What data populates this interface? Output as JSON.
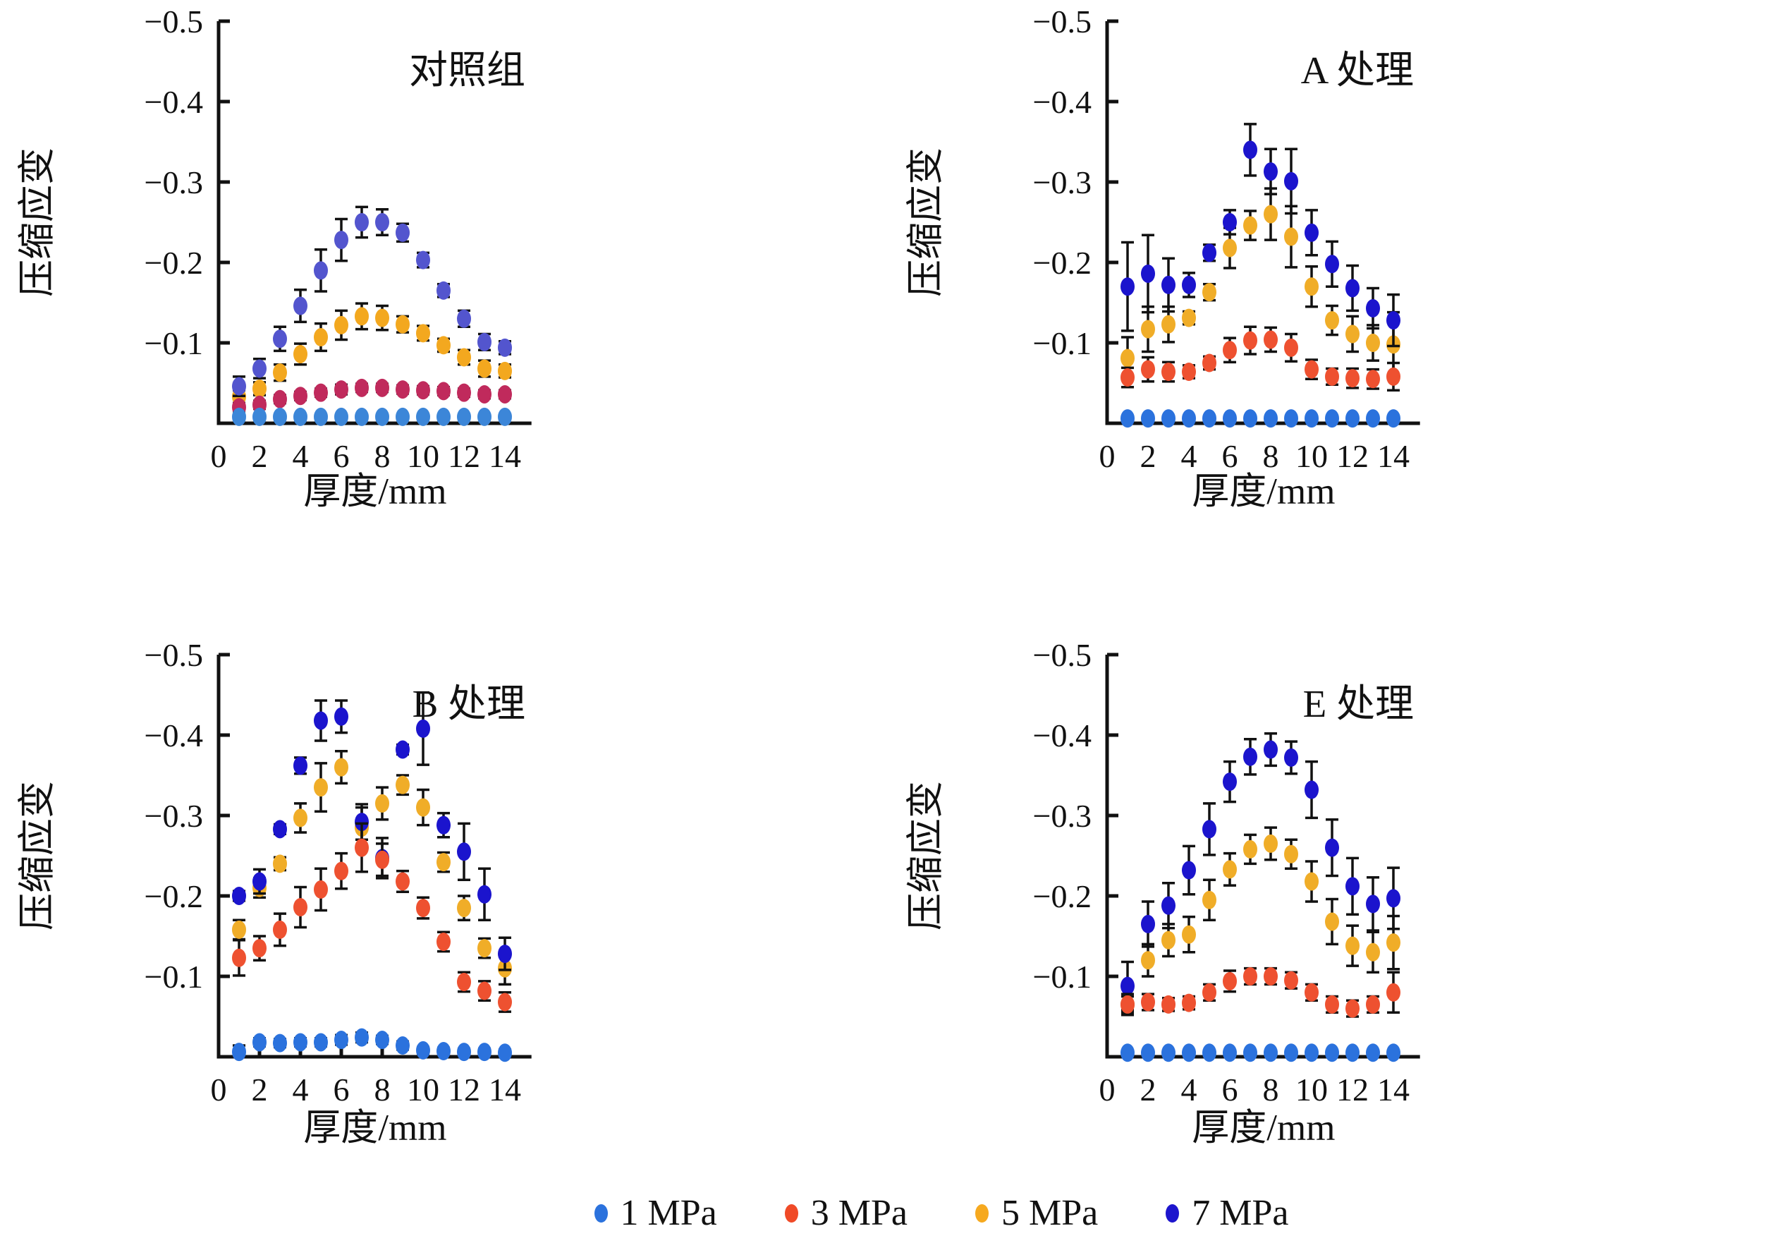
{
  "axes": {
    "xlabel": "厚度/mm",
    "ylabel": "压缩应变",
    "x_ticks": [
      0,
      2,
      4,
      6,
      8,
      10,
      12,
      14
    ],
    "y_ticks": [
      -0.1,
      -0.2,
      -0.3,
      -0.4,
      -0.5
    ],
    "y_tick_labels": [
      "−0.1",
      "−0.2",
      "−0.3",
      "−0.4",
      "−0.5"
    ],
    "x_tick_labels": [
      "0",
      "2",
      "4",
      "6",
      "8",
      "10",
      "12",
      "14"
    ],
    "xlim": [
      0,
      15.3
    ],
    "ylim": [
      0,
      -0.5
    ],
    "grid": false,
    "axis_color": "#111111",
    "error_bar_color": "#111111"
  },
  "legend": {
    "position": "bottom-center",
    "items": [
      {
        "label": "1 MPa",
        "color": "#2b72dd"
      },
      {
        "label": "3 MPa",
        "color": "#f04a27"
      },
      {
        "label": "5 MPa",
        "color": "#f6a91f"
      },
      {
        "label": "7 MPa",
        "color": "#1d15cd"
      }
    ]
  },
  "draw_order": [
    "5 MPa",
    "7 MPa",
    "3 MPa",
    "1 MPa"
  ],
  "chart_data": [
    {
      "type": "scatter",
      "title": "对照组",
      "xlabel": "厚度/mm",
      "ylabel": "压缩应变",
      "x": [
        1,
        2,
        3,
        4,
        5,
        6,
        7,
        8,
        9,
        10,
        11,
        12,
        13,
        14
      ],
      "series": [
        {
          "name": "1 MPa",
          "color": "#3c86d8",
          "values": [
            -0.008,
            -0.008,
            -0.008,
            -0.008,
            -0.008,
            -0.008,
            -0.008,
            -0.008,
            -0.008,
            -0.008,
            -0.008,
            -0.008,
            -0.008,
            -0.008
          ],
          "errors": [
            0.003,
            0.003,
            0.003,
            0.003,
            0.003,
            0.003,
            0.003,
            0.003,
            0.003,
            0.003,
            0.003,
            0.003,
            0.003,
            0.003
          ]
        },
        {
          "name": "3 MPa",
          "color": "#c02a5c",
          "values": [
            -0.02,
            -0.023,
            -0.03,
            -0.034,
            -0.038,
            -0.042,
            -0.044,
            -0.044,
            -0.042,
            -0.041,
            -0.04,
            -0.038,
            -0.036,
            -0.036
          ],
          "errors": [
            0.005,
            0.005,
            0.005,
            0.005,
            0.005,
            0.006,
            0.005,
            0.005,
            0.005,
            0.005,
            0.005,
            0.005,
            0.005,
            0.005
          ]
        },
        {
          "name": "5 MPa",
          "color": "#f3a81f",
          "values": [
            -0.033,
            -0.043,
            -0.063,
            -0.086,
            -0.107,
            -0.122,
            -0.133,
            -0.131,
            -0.123,
            -0.112,
            -0.097,
            -0.082,
            -0.068,
            -0.065
          ],
          "errors": [
            0.008,
            0.008,
            0.01,
            0.013,
            0.017,
            0.018,
            0.016,
            0.015,
            0.01,
            0.009,
            0.008,
            0.009,
            0.01,
            0.008
          ]
        },
        {
          "name": "7 MPa",
          "color": "#5355ce",
          "values": [
            -0.046,
            -0.068,
            -0.105,
            -0.146,
            -0.19,
            -0.228,
            -0.25,
            -0.25,
            -0.237,
            -0.203,
            -0.165,
            -0.13,
            -0.101,
            -0.094
          ],
          "errors": [
            0.012,
            0.012,
            0.015,
            0.02,
            0.026,
            0.026,
            0.019,
            0.016,
            0.011,
            0.009,
            0.008,
            0.01,
            0.01,
            0.008
          ]
        }
      ]
    },
    {
      "type": "scatter",
      "title": "A 处理",
      "xlabel": "厚度/mm",
      "ylabel": "压缩应变",
      "x": [
        1,
        2,
        3,
        4,
        5,
        6,
        7,
        8,
        9,
        10,
        11,
        12,
        13,
        14
      ],
      "series": [
        {
          "name": "1 MPa",
          "color": "#2b72dd",
          "values": [
            -0.006,
            -0.006,
            -0.006,
            -0.006,
            -0.006,
            -0.006,
            -0.006,
            -0.006,
            -0.006,
            -0.006,
            -0.006,
            -0.006,
            -0.006,
            -0.006
          ],
          "errors": [
            0.003,
            0.003,
            0.003,
            0.003,
            0.003,
            0.003,
            0.003,
            0.003,
            0.003,
            0.003,
            0.003,
            0.003,
            0.003,
            0.003
          ]
        },
        {
          "name": "3 MPa",
          "color": "#ee5130",
          "values": [
            -0.057,
            -0.067,
            -0.064,
            -0.064,
            -0.075,
            -0.091,
            -0.103,
            -0.104,
            -0.094,
            -0.067,
            -0.058,
            -0.056,
            -0.055,
            -0.058
          ],
          "errors": [
            0.012,
            0.015,
            0.012,
            0.008,
            0.008,
            0.015,
            0.017,
            0.015,
            0.017,
            0.012,
            0.01,
            0.012,
            0.012,
            0.017
          ]
        },
        {
          "name": "5 MPa",
          "color": "#f0ad28",
          "values": [
            -0.081,
            -0.117,
            -0.123,
            -0.131,
            -0.163,
            -0.218,
            -0.246,
            -0.26,
            -0.232,
            -0.17,
            -0.128,
            -0.111,
            -0.1,
            -0.098
          ],
          "errors": [
            0.026,
            0.028,
            0.022,
            0.008,
            0.01,
            0.025,
            0.018,
            0.032,
            0.038,
            0.025,
            0.018,
            0.022,
            0.022,
            0.04
          ]
        },
        {
          "name": "7 MPa",
          "color": "#1b14cd",
          "values": [
            -0.17,
            -0.186,
            -0.172,
            -0.172,
            -0.212,
            -0.25,
            -0.34,
            -0.313,
            -0.301,
            -0.237,
            -0.198,
            -0.168,
            -0.143,
            -0.128
          ],
          "errors": [
            0.055,
            0.048,
            0.033,
            0.015,
            0.01,
            0.015,
            0.032,
            0.028,
            0.04,
            0.028,
            0.028,
            0.028,
            0.025,
            0.032
          ]
        }
      ]
    },
    {
      "type": "scatter",
      "title": "B 处理",
      "xlabel": "厚度/mm",
      "ylabel": "压缩应变",
      "x": [
        1,
        2,
        3,
        4,
        5,
        6,
        7,
        8,
        9,
        10,
        11,
        12,
        13,
        14
      ],
      "series": [
        {
          "name": "1 MPa",
          "color": "#2b72dd",
          "values": [
            -0.006,
            -0.018,
            -0.017,
            -0.018,
            -0.018,
            -0.021,
            -0.024,
            -0.021,
            -0.014,
            -0.008,
            -0.007,
            -0.006,
            -0.006,
            -0.005
          ],
          "errors": [
            0.008,
            0.005,
            0.005,
            0.005,
            0.005,
            0.006,
            0.006,
            0.005,
            0.005,
            0.004,
            0.004,
            0.004,
            0.004,
            0.004
          ]
        },
        {
          "name": "3 MPa",
          "color": "#ee5130",
          "values": [
            -0.123,
            -0.135,
            -0.158,
            -0.186,
            -0.208,
            -0.231,
            -0.26,
            -0.245,
            -0.218,
            -0.185,
            -0.143,
            -0.093,
            -0.082,
            -0.068
          ],
          "errors": [
            0.022,
            0.015,
            0.02,
            0.025,
            0.026,
            0.022,
            0.03,
            0.02,
            0.013,
            0.013,
            0.012,
            0.012,
            0.012,
            0.012
          ]
        },
        {
          "name": "5 MPa",
          "color": "#f0ad28",
          "values": [
            -0.158,
            -0.21,
            -0.24,
            -0.297,
            -0.335,
            -0.36,
            -0.285,
            -0.315,
            -0.338,
            -0.31,
            -0.242,
            -0.185,
            -0.135,
            -0.11
          ],
          "errors": [
            0.012,
            0.012,
            0.008,
            0.018,
            0.03,
            0.02,
            0.025,
            0.02,
            0.012,
            0.022,
            0.012,
            0.015,
            0.012,
            0.02
          ]
        },
        {
          "name": "7 MPa",
          "color": "#1b14cd",
          "values": [
            -0.2,
            -0.218,
            -0.283,
            -0.362,
            -0.418,
            -0.423,
            -0.292,
            -0.247,
            -0.382,
            -0.408,
            -0.288,
            -0.255,
            -0.202,
            -0.128
          ],
          "errors": [
            0.006,
            0.015,
            0.006,
            0.01,
            0.025,
            0.02,
            0.022,
            0.025,
            0.006,
            0.045,
            0.015,
            0.035,
            0.032,
            0.02
          ]
        }
      ]
    },
    {
      "type": "scatter",
      "title": "E 处理",
      "xlabel": "厚度/mm",
      "ylabel": "压缩应变",
      "x": [
        1,
        2,
        3,
        4,
        5,
        6,
        7,
        8,
        9,
        10,
        11,
        12,
        13,
        14
      ],
      "series": [
        {
          "name": "1 MPa",
          "color": "#2b72dd",
          "values": [
            -0.005,
            -0.005,
            -0.005,
            -0.005,
            -0.005,
            -0.005,
            -0.005,
            -0.005,
            -0.005,
            -0.005,
            -0.005,
            -0.005,
            -0.005,
            -0.005
          ],
          "errors": [
            0.003,
            0.003,
            0.003,
            0.003,
            0.003,
            0.003,
            0.003,
            0.003,
            0.003,
            0.003,
            0.003,
            0.003,
            0.003,
            0.003
          ]
        },
        {
          "name": "3 MPa",
          "color": "#ee5130",
          "values": [
            -0.065,
            -0.068,
            -0.065,
            -0.067,
            -0.08,
            -0.094,
            -0.1,
            -0.1,
            -0.095,
            -0.08,
            -0.065,
            -0.06,
            -0.065,
            -0.08
          ],
          "errors": [
            0.013,
            0.01,
            0.008,
            0.008,
            0.01,
            0.013,
            0.01,
            0.01,
            0.01,
            0.01,
            0.01,
            0.01,
            0.01,
            0.025
          ]
        },
        {
          "name": "5 MPa",
          "color": "#f0ad28",
          "values": [
            -0.065,
            -0.12,
            -0.145,
            -0.152,
            -0.195,
            -0.233,
            -0.258,
            -0.265,
            -0.252,
            -0.218,
            -0.168,
            -0.138,
            -0.13,
            -0.142
          ],
          "errors": [
            0.01,
            0.02,
            0.02,
            0.022,
            0.025,
            0.02,
            0.018,
            0.02,
            0.018,
            0.025,
            0.028,
            0.025,
            0.025,
            0.033
          ]
        },
        {
          "name": "7 MPa",
          "color": "#1b14cd",
          "values": [
            -0.088,
            -0.165,
            -0.188,
            -0.232,
            -0.283,
            -0.342,
            -0.373,
            -0.382,
            -0.372,
            -0.332,
            -0.26,
            -0.212,
            -0.19,
            -0.197
          ],
          "errors": [
            0.03,
            0.028,
            0.028,
            0.03,
            0.032,
            0.025,
            0.022,
            0.02,
            0.02,
            0.035,
            0.035,
            0.035,
            0.033,
            0.038
          ]
        }
      ]
    }
  ]
}
